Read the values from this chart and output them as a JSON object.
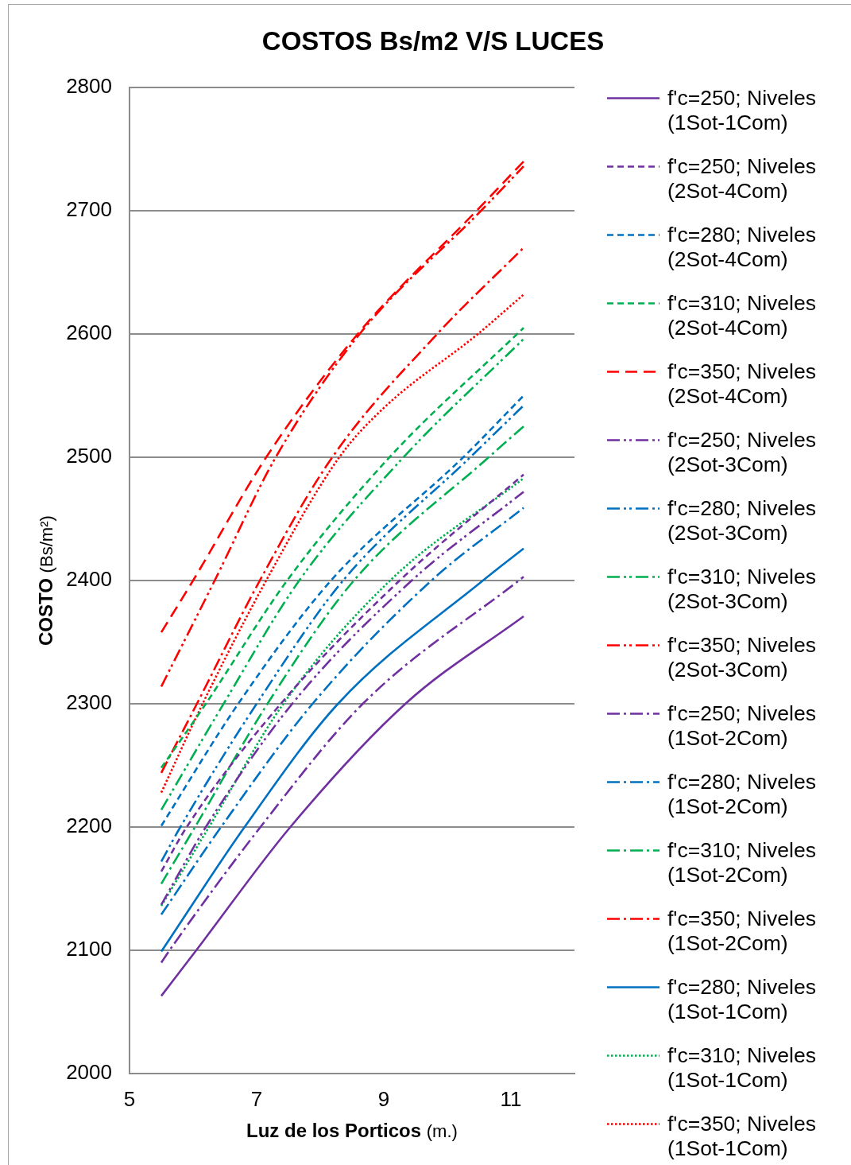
{
  "chart_data": {
    "type": "line",
    "title": "COSTOS Bs/m2 V/S LUCES",
    "xlabel": "Luz de los Porticos (m.)",
    "ylabel": "COSTO (Bs/m²)",
    "xlim": [
      5,
      12
    ],
    "xticks": [
      5,
      7,
      9,
      11
    ],
    "ylim": [
      2000,
      2800
    ],
    "yticks": [
      2000,
      2100,
      2200,
      2300,
      2400,
      2500,
      2600,
      2700,
      2800
    ],
    "grid": "y",
    "legend": "right",
    "marker": "none",
    "series": [
      {
        "name": "f'c=250; Niveles (1Sot-1Com)",
        "color": "#7030a0",
        "line_style": "solid",
        "x": [
          5.5,
          6.05,
          7.53,
          9.34,
          11.2
        ],
        "values": [
          2063,
          2100,
          2200,
          2300,
          2371
        ]
      },
      {
        "name": "f'c=250; Niveles (2Sot-4Com)",
        "color": "#7030a0",
        "line_style": "dashed",
        "x": [
          5.5,
          5.9,
          7.38,
          9.25,
          11.2
        ],
        "values": [
          2164,
          2200,
          2300,
          2400,
          2486
        ]
      },
      {
        "name": "f'c=280; Niveles (2Sot-4Com)",
        "color": "#0070c0",
        "line_style": "dashed",
        "x": [
          5.5,
          6.71,
          8.17,
          10.25,
          11.2
        ],
        "values": [
          2201,
          2300,
          2400,
          2500,
          2550
        ]
      },
      {
        "name": "f'c=310; Niveles (2Sot-4Com)",
        "color": "#00b050",
        "line_style": "dashed",
        "x": [
          5.5,
          6.2,
          7.48,
          9.09,
          11.2
        ],
        "values": [
          2248,
          2300,
          2400,
          2500,
          2605
        ]
      },
      {
        "name": "f'c=350; Niveles (2Sot-4Com)",
        "color": "#ff0000",
        "line_style": "longdash",
        "x": [
          5.5,
          6.0,
          7.15,
          8.59,
          10.46,
          11.2
        ],
        "values": [
          2358,
          2400,
          2500,
          2600,
          2700,
          2740
        ]
      },
      {
        "name": "f'c=250; Niveles (2Sot-3Com)",
        "color": "#7030a0",
        "line_style": "dashdotdot",
        "x": [
          5.5,
          6.2,
          7.56,
          9.44,
          11.2
        ],
        "values": [
          2137,
          2200,
          2300,
          2400,
          2472
        ]
      },
      {
        "name": "f'c=280; Niveles (2Sot-3Com)",
        "color": "#0070c0",
        "line_style": "dashdotdot",
        "x": [
          5.5,
          5.8,
          7.0,
          8.36,
          10.36,
          11.2
        ],
        "values": [
          2172,
          2200,
          2300,
          2400,
          2500,
          2542
        ]
      },
      {
        "name": "f'c=310; Niveles (2Sot-3Com)",
        "color": "#00b050",
        "line_style": "dashdotdot",
        "x": [
          5.5,
          6.48,
          7.67,
          9.31,
          11.2
        ],
        "values": [
          2214,
          2300,
          2400,
          2500,
          2596
        ]
      },
      {
        "name": "f'c=350; Niveles (2Sot-3Com)",
        "color": "#ff0000",
        "line_style": "dashdotdot",
        "x": [
          5.5,
          6.34,
          7.3,
          8.62,
          10.53,
          11.2
        ],
        "values": [
          2314,
          2400,
          2500,
          2600,
          2700,
          2736
        ]
      },
      {
        "name": "f'c=250; Niveles (1Sot-2Com)",
        "color": "#7030a0",
        "line_style": "dashdot",
        "x": [
          5.5,
          5.63,
          7.06,
          8.67,
          11.2
        ],
        "values": [
          2090,
          2100,
          2200,
          2300,
          2403
        ]
      },
      {
        "name": "f'c=280; Niveles (1Sot-2Com)",
        "color": "#0070c0",
        "line_style": "dashdot",
        "x": [
          5.5,
          6.44,
          7.88,
          9.75,
          11.2
        ],
        "values": [
          2129,
          2200,
          2300,
          2400,
          2459
        ]
      },
      {
        "name": "f'c=310; Niveles (1Sot-2Com)",
        "color": "#00b050",
        "line_style": "dashdot",
        "x": [
          5.5,
          6.03,
          7.17,
          8.53,
          10.65,
          11.2
        ],
        "values": [
          2154,
          2200,
          2300,
          2400,
          2500,
          2525
        ]
      },
      {
        "name": "f'c=350; Niveles (1Sot-2Com)",
        "color": "#ff0000",
        "line_style": "dashdot",
        "x": [
          5.5,
          6.06,
          7.05,
          8.19,
          9.84,
          11.2
        ],
        "values": [
          2244,
          2300,
          2400,
          2500,
          2600,
          2670
        ]
      },
      {
        "name": "f'c=280; Niveles (1Sot-1Com)",
        "color": "#0070c0",
        "line_style": "solid",
        "x": [
          5.5,
          6.81,
          8.28,
          10.56,
          11.2
        ],
        "values": [
          2099,
          2200,
          2300,
          2400,
          2426
        ]
      },
      {
        "name": "f'c=310; Niveles (1Sot-1Com)",
        "color": "#00b050",
        "line_style": "dotted",
        "x": [
          5.5,
          6.25,
          7.42,
          9.1,
          11.2
        ],
        "values": [
          2136,
          2200,
          2300,
          2400,
          2483
        ]
      },
      {
        "name": "f'c=350; Niveles (1Sot-1Com)",
        "color": "#ff0000",
        "line_style": "dotted",
        "x": [
          5.5,
          6.15,
          7.15,
          8.3,
          9.0,
          10.48,
          11.2
        ],
        "values": [
          2228,
          2300,
          2400,
          2500,
          2540,
          2600,
          2632
        ]
      }
    ]
  }
}
